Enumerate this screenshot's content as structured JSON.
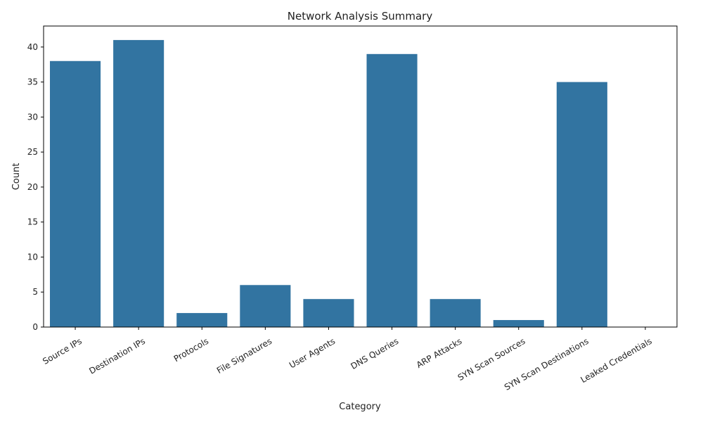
{
  "chart_data": {
    "type": "bar",
    "title": "Network Analysis Summary",
    "xlabel": "Category",
    "ylabel": "Count",
    "categories": [
      "Source IPs",
      "Destination IPs",
      "Protocols",
      "File Signatures",
      "User Agents",
      "DNS Queries",
      "ARP Attacks",
      "SYN Scan Sources",
      "SYN Scan Destinations",
      "Leaked Credentials"
    ],
    "values": [
      38,
      41,
      2,
      6,
      4,
      39,
      4,
      1,
      35,
      0
    ],
    "ylim": [
      0,
      43
    ],
    "yticks": [
      0,
      5,
      10,
      15,
      20,
      25,
      30,
      35,
      40
    ],
    "bar_color": "#3274a1",
    "grid": false,
    "legend": "none"
  }
}
